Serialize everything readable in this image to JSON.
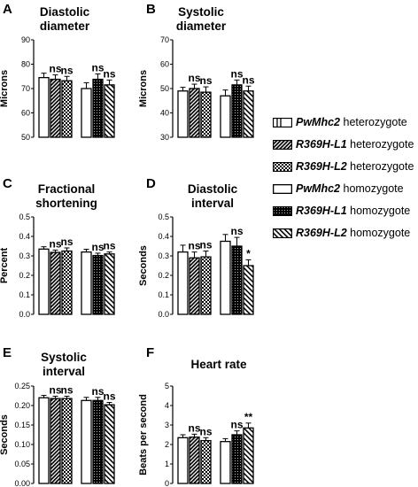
{
  "legend": {
    "items": [
      {
        "bold": "PwMhc2",
        "rest": " heterozygote",
        "pattern": "white"
      },
      {
        "bold": "R369H-L1",
        "rest": " heterozygote",
        "pattern": "diag"
      },
      {
        "bold": "R369H-L2",
        "rest": " heterozygote",
        "pattern": "checker"
      },
      {
        "bold": "PwMhc2",
        "rest": " homozygote",
        "pattern": "white"
      },
      {
        "bold": "R369H-L1",
        "rest": " homozygote",
        "pattern": "dark"
      },
      {
        "bold": "R369H-L2",
        "rest": " homozygote",
        "pattern": "hatch"
      }
    ]
  },
  "chart_data": [
    {
      "type": "bar",
      "panel": "A",
      "title": [
        "Diastolic",
        "diameter"
      ],
      "ylabel": "Microns",
      "ylim": [
        50,
        90
      ],
      "yticks": [
        50,
        60,
        70,
        80,
        90
      ],
      "values": [
        74.5,
        73.8,
        73.2,
        70.0,
        73.8,
        71.5
      ],
      "errors": [
        1.8,
        1.8,
        1.8,
        2.4,
        2.2,
        2.0
      ],
      "annotations": [
        "",
        "ns",
        "ns",
        "",
        "ns",
        "ns"
      ]
    },
    {
      "type": "bar",
      "panel": "B",
      "title": [
        "Systolic",
        "diameter"
      ],
      "ylabel": "Microns",
      "ylim": [
        30,
        70
      ],
      "yticks": [
        30,
        40,
        50,
        60,
        70
      ],
      "values": [
        49.0,
        50.0,
        48.5,
        47.0,
        51.5,
        49.0
      ],
      "errors": [
        1.5,
        1.8,
        2.2,
        2.4,
        2.0,
        2.0
      ],
      "annotations": [
        "",
        "ns",
        "ns",
        "",
        "ns",
        "ns"
      ]
    },
    {
      "type": "bar",
      "panel": "C",
      "title": [
        "Fractional",
        "shortening"
      ],
      "ylabel": "Percent",
      "ylim": [
        0.0,
        0.5
      ],
      "yticks": [
        "0.0",
        "0.1",
        "0.2",
        "0.3",
        "0.4",
        "0.5"
      ],
      "values": [
        0.335,
        0.318,
        0.325,
        0.32,
        0.302,
        0.31
      ],
      "errors": [
        0.012,
        0.012,
        0.016,
        0.014,
        0.012,
        0.01
      ],
      "annotations": [
        "",
        "ns",
        "ns",
        "",
        "ns",
        "ns"
      ]
    },
    {
      "type": "bar",
      "panel": "D",
      "title": [
        "Diastolic",
        "interval"
      ],
      "ylabel": "Seconds",
      "ylim": [
        0.0,
        0.5
      ],
      "yticks": [
        "0.0",
        "0.1",
        "0.2",
        "0.3",
        "0.4",
        "0.5"
      ],
      "values": [
        0.32,
        0.29,
        0.295,
        0.375,
        0.35,
        0.25
      ],
      "errors": [
        0.035,
        0.03,
        0.03,
        0.035,
        0.045,
        0.03
      ],
      "annotations": [
        "",
        "ns",
        "ns",
        "",
        "ns",
        "*"
      ]
    },
    {
      "type": "bar",
      "panel": "E",
      "title": [
        "Systolic",
        "interval"
      ],
      "ylabel": "Seconds",
      "ylim": [
        0.0,
        0.25
      ],
      "yticks": [
        "0.00",
        "0.05",
        "0.10",
        "0.15",
        "0.20",
        "0.25"
      ],
      "values": [
        0.22,
        0.218,
        0.218,
        0.213,
        0.213,
        0.202
      ],
      "errors": [
        0.006,
        0.006,
        0.006,
        0.008,
        0.008,
        0.006
      ],
      "annotations": [
        "",
        "ns",
        "ns",
        "",
        "ns",
        "ns"
      ]
    },
    {
      "type": "bar",
      "panel": "F",
      "title": [
        "Heart rate"
      ],
      "ylabel": "Beats per second",
      "ylim": [
        0,
        5
      ],
      "yticks": [
        "0",
        "1",
        "2",
        "3",
        "4",
        "5"
      ],
      "values": [
        2.35,
        2.38,
        2.2,
        2.15,
        2.5,
        2.85
      ],
      "errors": [
        0.15,
        0.15,
        0.15,
        0.15,
        0.2,
        0.25
      ],
      "annotations": [
        "",
        "ns",
        "ns",
        "",
        "ns",
        "**"
      ]
    }
  ]
}
